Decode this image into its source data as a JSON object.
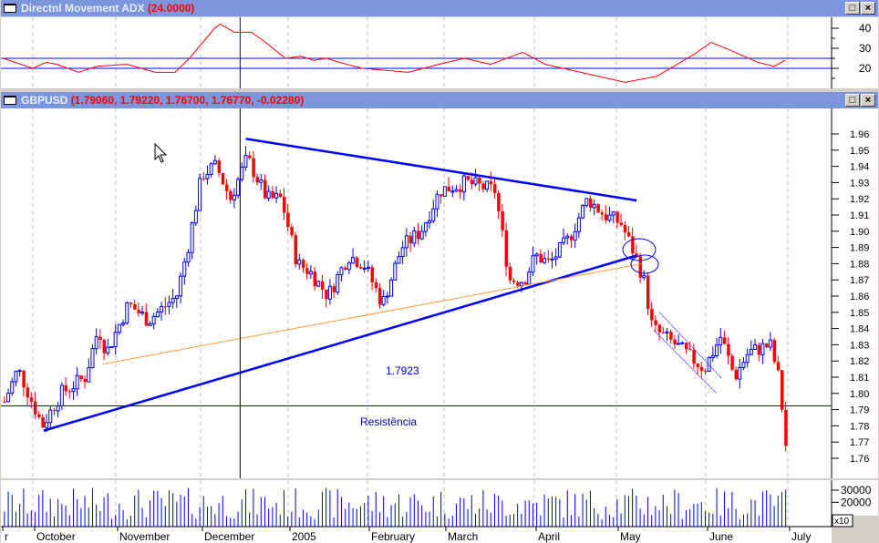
{
  "adx_panel": {
    "title": "Directnl Movement ADX",
    "value": "(24.0000)",
    "y_ticks": [
      "40",
      "30",
      "20"
    ],
    "levels": [
      25,
      20
    ]
  },
  "price_panel": {
    "title": "GBPUSD",
    "values": "(1.79060, 1.79220, 1.76700, 1.76770, -0.02280)",
    "y_ticks": [
      "1.96",
      "1.95",
      "1.94",
      "1.93",
      "1.92",
      "1.91",
      "1.90",
      "1.89",
      "1.88",
      "1.87",
      "1.86",
      "1.85",
      "1.84",
      "1.83",
      "1.82",
      "1.81",
      "1.80",
      "1.79",
      "1.78",
      "1.77",
      "1.76"
    ],
    "annotation_value": "1.7923",
    "annotation_label": "Resistência"
  },
  "volume_panel": {
    "y_ticks": [
      "30000",
      "20000"
    ],
    "multiplier": "x10"
  },
  "x_axis": {
    "labels": [
      "r",
      "October",
      "November",
      "December",
      "2005",
      "February",
      "March",
      "April",
      "May",
      "June",
      "July"
    ]
  },
  "colors": {
    "up": "#0000ff",
    "down": "#ff0000",
    "adx": "#ff0000",
    "trend": "#0000ff",
    "fib": "#ff9933",
    "title_bg": "#7b96dc"
  },
  "chart_data": {
    "type": "candlestick",
    "symbol": "GBPUSD",
    "ylim": [
      1.75,
      1.97
    ],
    "close_path": [
      [
        "2004-09-20",
        1.795
      ],
      [
        "2004-09-25",
        1.815
      ],
      [
        "2004-10-04",
        1.78
      ],
      [
        "2004-10-11",
        1.8
      ],
      [
        "2004-10-20",
        1.81
      ],
      [
        "2004-10-25",
        1.84
      ],
      [
        "2004-10-28",
        1.825
      ],
      [
        "2004-11-05",
        1.855
      ],
      [
        "2004-11-12",
        1.845
      ],
      [
        "2004-11-22",
        1.86
      ],
      [
        "2004-11-26",
        1.89
      ],
      [
        "2004-12-01",
        1.935
      ],
      [
        "2004-12-06",
        1.94
      ],
      [
        "2004-12-11",
        1.92
      ],
      [
        "2004-12-17",
        1.945
      ],
      [
        "2004-12-24",
        1.92
      ],
      [
        "2004-12-29",
        1.92
      ],
      [
        "2005-01-04",
        1.88
      ],
      [
        "2005-01-09",
        1.875
      ],
      [
        "2005-01-16",
        1.86
      ],
      [
        "2005-01-24",
        1.885
      ],
      [
        "2005-01-30",
        1.88
      ],
      [
        "2005-02-06",
        1.855
      ],
      [
        "2005-02-13",
        1.89
      ],
      [
        "2005-02-20",
        1.9
      ],
      [
        "2005-02-27",
        1.925
      ],
      [
        "2005-03-08",
        1.93
      ],
      [
        "2005-03-18",
        1.925
      ],
      [
        "2005-03-23",
        1.87
      ],
      [
        "2005-03-28",
        1.87
      ],
      [
        "2005-04-01",
        1.885
      ],
      [
        "2005-04-06",
        1.88
      ],
      [
        "2005-04-13",
        1.895
      ],
      [
        "2005-04-20",
        1.92
      ],
      [
        "2005-04-26",
        1.91
      ],
      [
        "2005-05-02",
        1.905
      ],
      [
        "2005-05-07",
        1.885
      ],
      [
        "2005-05-10",
        1.87
      ],
      [
        "2005-05-13",
        1.84
      ],
      [
        "2005-05-21",
        1.83
      ],
      [
        "2005-05-31",
        1.815
      ],
      [
        "2005-06-06",
        1.835
      ],
      [
        "2005-06-11",
        1.81
      ],
      [
        "2005-06-16",
        1.825
      ],
      [
        "2005-06-24",
        1.83
      ],
      [
        "2005-06-27",
        1.81
      ],
      [
        "2005-06-30",
        1.7677
      ]
    ],
    "adx": [
      [
        "2004-09-20",
        25
      ],
      [
        "2004-10-01",
        20
      ],
      [
        "2004-10-06",
        23
      ],
      [
        "2004-10-10",
        22
      ],
      [
        "2004-10-18",
        18
      ],
      [
        "2004-10-25",
        21
      ],
      [
        "2004-11-05",
        22
      ],
      [
        "2004-11-15",
        18
      ],
      [
        "2004-11-22",
        18
      ],
      [
        "2004-11-27",
        25
      ],
      [
        "2004-12-06",
        40
      ],
      [
        "2004-12-08",
        42
      ],
      [
        "2004-12-13",
        38
      ],
      [
        "2004-12-19",
        38
      ],
      [
        "2004-12-24",
        33
      ],
      [
        "2004-12-31",
        25
      ],
      [
        "2005-01-06",
        26
      ],
      [
        "2005-01-11",
        24
      ],
      [
        "2005-01-16",
        25
      ],
      [
        "2005-01-21",
        23
      ],
      [
        "2005-01-30",
        20
      ],
      [
        "2005-02-16",
        18
      ],
      [
        "2005-02-27",
        22
      ],
      [
        "2005-03-08",
        25
      ],
      [
        "2005-03-17",
        22
      ],
      [
        "2005-03-28",
        28
      ],
      [
        "2005-04-05",
        22
      ],
      [
        "2005-04-18",
        18
      ],
      [
        "2005-05-04",
        13
      ],
      [
        "2005-05-15",
        16
      ],
      [
        "2005-05-28",
        27
      ],
      [
        "2005-06-03",
        33
      ],
      [
        "2005-06-10",
        29
      ],
      [
        "2005-06-20",
        23
      ],
      [
        "2005-06-26",
        21
      ],
      [
        "2005-06-30",
        24
      ]
    ],
    "trendlines": [
      {
        "name": "resistance-upper",
        "from": [
          "2004-12-17",
          1.957
        ],
        "to": [
          "2005-05-08",
          1.919
        ],
        "color": "#0000ff"
      },
      {
        "name": "support-lower",
        "from": [
          "2004-10-05",
          1.777
        ],
        "to": [
          "2005-05-08",
          1.885
        ],
        "color": "#0000ff"
      },
      {
        "name": "orange-line",
        "from": [
          "2004-10-27",
          1.818
        ],
        "to": [
          "2005-05-10",
          1.88
        ],
        "color": "#ff9933"
      },
      {
        "name": "channel-lower",
        "from": [
          "2005-05-14",
          1.839
        ],
        "to": [
          "2005-06-05",
          1.8
        ],
        "color": "#0000ff"
      },
      {
        "name": "channel-upper",
        "from": [
          "2005-05-16",
          1.85
        ],
        "to": [
          "2005-06-07",
          1.809
        ],
        "color": "#0000ff"
      }
    ],
    "horizontal_line": 1.7923,
    "vertical_line": "2004-12-15"
  }
}
